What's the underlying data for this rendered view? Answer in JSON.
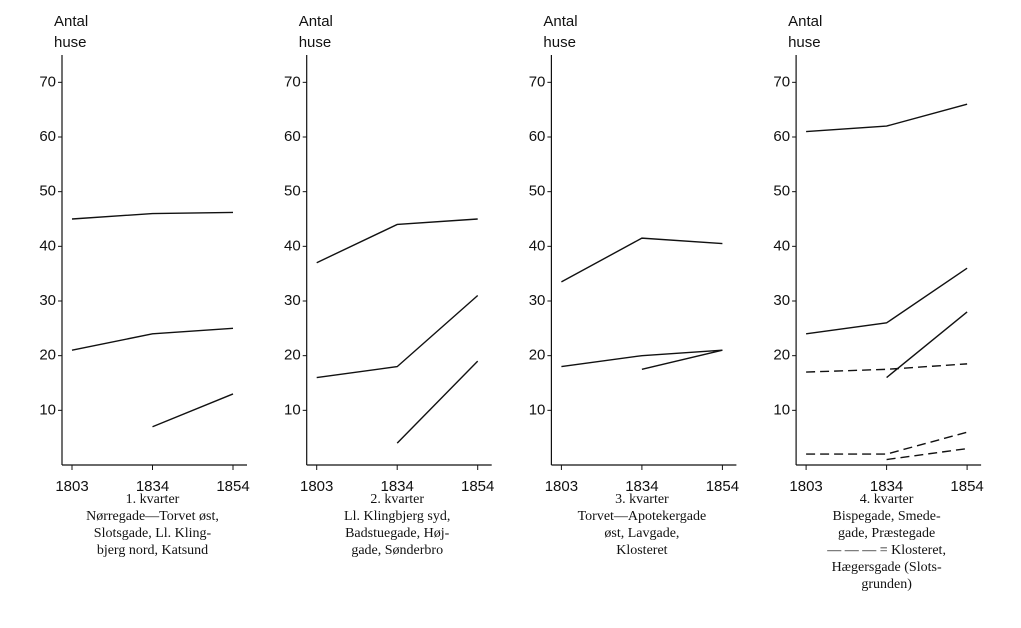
{
  "chart_data": [
    {
      "type": "line",
      "ylabel": [
        "Antal",
        "huse"
      ],
      "categories": [
        "1803",
        "1834",
        "1854"
      ],
      "ylim": [
        0,
        75
      ],
      "yticks": [
        10,
        20,
        30,
        40,
        50,
        60,
        70
      ],
      "caption": [
        "1. kvarter",
        "Nørregade—Torvet øst,",
        "Slotsgade, Ll. Kling-",
        "bjerg nord, Katsund"
      ],
      "series": [
        {
          "color": "#111",
          "style": "solid",
          "values": [
            45,
            46,
            46.2
          ]
        },
        {
          "color": "#111",
          "style": "solid",
          "values": [
            21,
            24,
            25
          ]
        },
        {
          "color": "#111",
          "style": "solid",
          "values": [
            null,
            7,
            13
          ]
        }
      ]
    },
    {
      "type": "line",
      "ylabel": [
        "Antal",
        "huse"
      ],
      "categories": [
        "1803",
        "1834",
        "1854"
      ],
      "ylim": [
        0,
        75
      ],
      "yticks": [
        10,
        20,
        30,
        40,
        50,
        60,
        70
      ],
      "caption": [
        "2. kvarter",
        "Ll. Klingbjerg syd,",
        "Badstuegade, Høj-",
        "gade, Sønderbro"
      ],
      "series": [
        {
          "color": "#111",
          "style": "solid",
          "values": [
            37,
            44,
            45
          ]
        },
        {
          "color": "#111",
          "style": "solid",
          "values": [
            16,
            18,
            31
          ]
        },
        {
          "color": "#111",
          "style": "solid",
          "values": [
            null,
            4,
            19
          ]
        }
      ]
    },
    {
      "type": "line",
      "ylabel": [
        "Antal",
        "huse"
      ],
      "categories": [
        "1803",
        "1834",
        "1854"
      ],
      "ylim": [
        0,
        75
      ],
      "yticks": [
        10,
        20,
        30,
        40,
        50,
        60,
        70
      ],
      "caption": [
        "3. kvarter",
        "Torvet—Apotekergade",
        "øst, Lavgade,",
        "Klosteret"
      ],
      "series": [
        {
          "color": "#111",
          "style": "solid",
          "values": [
            33.5,
            41.5,
            40.5
          ]
        },
        {
          "color": "#111",
          "style": "solid",
          "values": [
            18,
            20,
            21
          ]
        },
        {
          "color": "#111",
          "style": "solid",
          "values": [
            null,
            17.5,
            21
          ]
        }
      ]
    },
    {
      "type": "line",
      "ylabel": [
        "Antal",
        "huse"
      ],
      "categories": [
        "1803",
        "1834",
        "1854"
      ],
      "ylim": [
        0,
        75
      ],
      "yticks": [
        10,
        20,
        30,
        40,
        50,
        60,
        70
      ],
      "caption": [
        "4. kvarter",
        "Bispegade, Smede-",
        "gade, Præstegade",
        "— — — = Klosteret,",
        "Hægersgade (Slots-",
        "grunden)"
      ],
      "series": [
        {
          "color": "#111",
          "style": "solid",
          "values": [
            61,
            62,
            66
          ]
        },
        {
          "color": "#111",
          "style": "solid",
          "values": [
            24,
            26,
            36
          ]
        },
        {
          "color": "#111",
          "style": "solid",
          "values": [
            null,
            16,
            28
          ]
        },
        {
          "color": "#111",
          "style": "dashed",
          "values": [
            17,
            17.5,
            18.5
          ]
        },
        {
          "color": "#111",
          "style": "dashed",
          "values": [
            2,
            2,
            6
          ]
        },
        {
          "color": "#111",
          "style": "dashed",
          "values": [
            null,
            1,
            3
          ]
        }
      ]
    }
  ]
}
